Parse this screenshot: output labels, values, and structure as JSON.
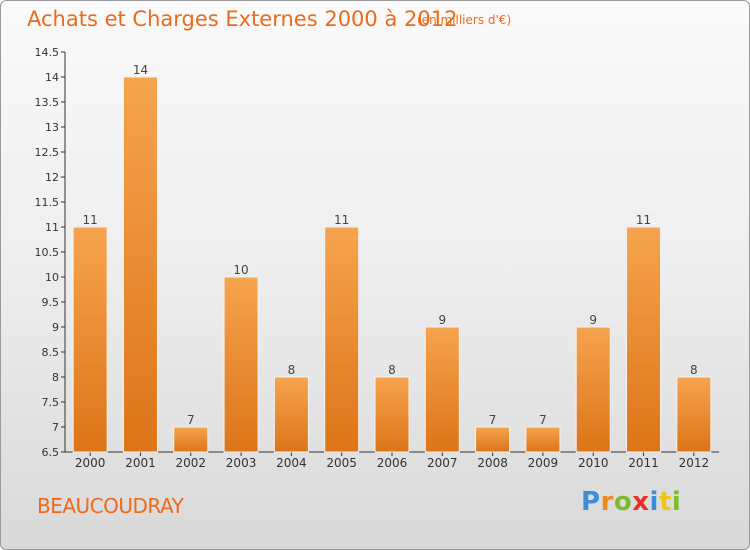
{
  "header": {
    "title": "Achats et Charges Externes 2000 à 2012",
    "subtitle": "(en milliers d'€)"
  },
  "commune": "BEAUCOUDRAY",
  "logo": {
    "text": "Proxiti",
    "letters": [
      "P",
      "r",
      "o",
      "x",
      "i",
      "t",
      "i"
    ],
    "letter_colors": [
      "#3a8fd8",
      "#f08a1c",
      "#7cbc2c",
      "#e8302a",
      "#3a8fd8",
      "#f0c418",
      "#7cbc2c"
    ]
  },
  "colors": {
    "bar_top": "#f6a44e",
    "bar_bottom": "#dd7418",
    "text_accent": "#ee6a1a"
  },
  "chart_data": {
    "type": "bar",
    "title": "Achats et Charges Externes 2000 à 2012",
    "subtitle": "(en milliers d'€)",
    "categories": [
      "2000",
      "2001",
      "2002",
      "2003",
      "2004",
      "2005",
      "2006",
      "2007",
      "2008",
      "2009",
      "2010",
      "2011",
      "2012"
    ],
    "values": [
      11,
      14,
      7,
      10,
      8,
      11,
      8,
      9,
      7,
      7,
      9,
      11,
      8
    ],
    "ylim": [
      6.5,
      14.5
    ],
    "yticks": [
      "6.5",
      "7",
      "7.5",
      "8",
      "8.5",
      "9",
      "9.5",
      "10",
      "10.5",
      "11",
      "11.5",
      "12",
      "12.5",
      "13",
      "13.5",
      "14",
      "14.5"
    ],
    "grid": false,
    "data_labels": true
  }
}
